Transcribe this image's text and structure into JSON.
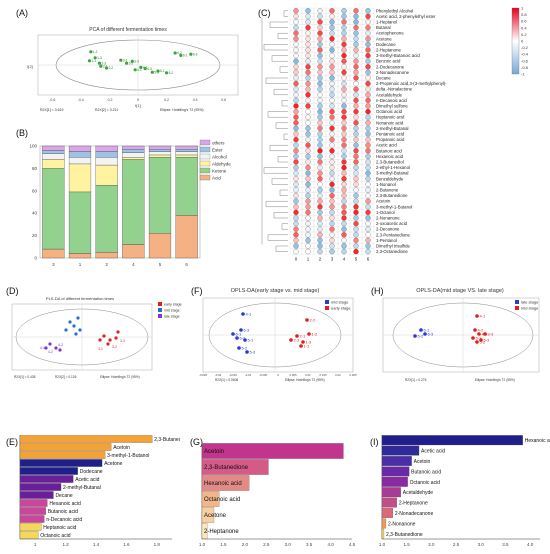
{
  "panels": {
    "A": {
      "label": "(A)",
      "title": "PCA of different fermentation times",
      "xlabel": "t[1]",
      "ylabel": "t[2]",
      "footer_left": "R2X[1] = 0.619",
      "footer_mid": "R2X[2] = 0.211",
      "footer_right": "Ellipse: Hotelling's T2 (95%)",
      "xticks": [
        "-0.6",
        "-0.4",
        "-0.2",
        "0",
        "0.2",
        "0.4",
        "0.6"
      ],
      "point_labels": [
        "1-2",
        "1-3",
        "1-1",
        "2-1",
        "2-2",
        "2-3",
        "3-1",
        "3-2",
        "3-3",
        "4-1",
        "4-2",
        "4-3",
        "5-1",
        "5-2",
        "5-3",
        "6-1",
        "6-2",
        "6-3"
      ]
    },
    "B": {
      "label": "(B)",
      "legend": [
        "others",
        "Ester",
        "Alcohol",
        "Aldehyde",
        "Ketone",
        "Acid"
      ],
      "yticks": [
        "0",
        "20",
        "40",
        "60",
        "80",
        "100"
      ],
      "xcats": [
        "3",
        "1",
        "2",
        "4",
        "5",
        "6"
      ]
    },
    "C": {
      "label": "(C)",
      "compounds": [
        "Phenylethyl Alcohol",
        "Acetic acid, 2-phenylethyl ester",
        "1-Heptanol",
        "Butanal",
        "Acetophenone",
        "Acetone",
        "Dodecane",
        "2-Heptanone",
        "3-methyl-Butanoic acid",
        "Benzoic acid",
        "2-Dodecanone",
        "2-Nonadecanone",
        "Decane",
        "2-Propenoic acid,3-(3-methylphenyl)-",
        "delta.-Nonalactone",
        "Acetaldehyde",
        "n-Decanoic acid",
        "Dimethyl sulfone",
        "Octanoic acid",
        "Heptanoic acid",
        "Nonanoic acid",
        "2-methyl-Butanal",
        "Pentanoic acid",
        "Propanoic acid",
        "Acetic acid",
        "Butanoic acid",
        "Hexanoic acid",
        "2,3-Butanediol",
        "2-ethyl-1-Hexanol",
        "3-methyl-Butanal",
        "Benzaldehyde",
        "1-Nonanol",
        "2-Butanone",
        "2,3-Butanedione",
        "Acetoin",
        "3-methyl-1-Butanol",
        "1-Octanol",
        "2-Nonanone",
        "2-oxoacetic acid",
        "2-Decanone",
        "2,3-Pentanedione",
        "1-Pentanol",
        "Dimethyl trisulfide",
        "2,3-Octanedione"
      ],
      "columns": [
        "0",
        "1",
        "2",
        "3",
        "4",
        "5",
        "6"
      ],
      "scale_ticks": [
        "1",
        "0.8",
        "0.6",
        "0.4",
        "0.2",
        "0",
        "-0.2",
        "-0.4",
        "-0.6",
        "-0.8",
        "-1"
      ]
    },
    "D": {
      "label": "(D)",
      "title": "PLS-DA of different fermentation times",
      "legend": [
        "early stage",
        "mid stage",
        "late stage"
      ],
      "footer_left": "R2X[1] = 0.438",
      "footer_mid": "R2X[2] = 0.126",
      "footer_right": "Ellipse: Hotelling's T2 (95%)",
      "xlabel": "t[1]",
      "ylabel": "t[2]",
      "point_labels": [
        "4-1",
        "4-2",
        "4-3",
        "3-1",
        "3-2",
        "3-3"
      ]
    },
    "F": {
      "label": "(F)",
      "title": "OPLS-DA(early stage vs. mid stage)",
      "legend": [
        "mid stage",
        "early stage"
      ],
      "footer_left": "R2X[1] = 0.0608",
      "footer_right": "Ellipse: Hotelling's T2 (95%)",
      "xlabel": "t[1]",
      "ylabel": "to[1]",
      "xticks": [
        "-0.025",
        "-0.02",
        "-0.015",
        "-0.01",
        "-0.005",
        "0",
        "0.005",
        "0.01",
        "0.015",
        "0.02",
        "0.025"
      ],
      "point_labels": [
        "4-1",
        "6-1",
        "6-2",
        "6-3",
        "5-1",
        "5-2",
        "5-3",
        "2-2",
        "2-1",
        "2-3",
        "1-1",
        "1-2",
        "1-3"
      ]
    },
    "H": {
      "label": "(H)",
      "title": "OPLS-DA(mid stage VS. late stage)",
      "legend": [
        "late stage",
        "mid stage"
      ],
      "footer_left": "R2X[1] = 0.276",
      "footer_right": "Ellipse: Hotelling's T2 (95%)",
      "xlabel": "t[1]",
      "ylabel": "to[1]",
      "point_labels": [
        "4-1",
        "6-1",
        "6-2",
        "6-3",
        "4-2",
        "4-3",
        "5-1",
        "5-2",
        "5-3",
        "3-3"
      ]
    },
    "E": {
      "label": "(E)"
    },
    "G": {
      "label": "(G)"
    },
    "I": {
      "label": "(I)"
    }
  },
  "chart_data": [
    {
      "panel": "A",
      "type": "scatter",
      "title": "PCA of different fermentation times",
      "xlabel": "t[1]",
      "ylabel": "t[2]",
      "xlim": [
        -0.7,
        0.7
      ],
      "ylim": [
        -0.5,
        0.5
      ],
      "points": [
        {
          "label": "1-2",
          "x": -0.33,
          "y": 0.22
        },
        {
          "label": "1-3",
          "x": -0.3,
          "y": 0.12
        },
        {
          "label": "1-1",
          "x": -0.34,
          "y": 0.07
        },
        {
          "label": "2-1",
          "x": -0.26,
          "y": -0.02
        },
        {
          "label": "2-2",
          "x": -0.22,
          "y": -0.05
        },
        {
          "label": "2-3",
          "x": -0.27,
          "y": 0.03
        },
        {
          "label": "3-1",
          "x": -0.12,
          "y": 0.08
        },
        {
          "label": "3-2",
          "x": -0.08,
          "y": 0.03
        },
        {
          "label": "3-3",
          "x": -0.04,
          "y": 0.06
        },
        {
          "label": "4-1",
          "x": -0.02,
          "y": -0.08
        },
        {
          "label": "4-2",
          "x": 0.02,
          "y": -0.04
        },
        {
          "label": "4-3",
          "x": 0.05,
          "y": -0.06
        },
        {
          "label": "5-1",
          "x": 0.14,
          "y": -0.1
        },
        {
          "label": "5-2",
          "x": 0.2,
          "y": -0.13
        },
        {
          "label": "5-3",
          "x": 0.1,
          "y": -0.12
        },
        {
          "label": "6-1",
          "x": 0.3,
          "y": 0.16
        },
        {
          "label": "6-2",
          "x": 0.26,
          "y": 0.2
        },
        {
          "label": "6-3",
          "x": 0.37,
          "y": 0.18
        }
      ]
    },
    {
      "panel": "B",
      "type": "bar",
      "stacked": true,
      "categories": [
        "3",
        "1",
        "2",
        "4",
        "5",
        "6"
      ],
      "ylim": [
        0,
        100
      ],
      "series": [
        {
          "name": "Acid",
          "color": "#f4b183",
          "values": [
            8,
            4,
            5,
            12,
            22,
            38
          ]
        },
        {
          "name": "Ketone",
          "color": "#92d18e",
          "values": [
            72,
            55,
            60,
            76,
            68,
            52
          ]
        },
        {
          "name": "Aldehyde",
          "color": "#fff2a0",
          "values": [
            8,
            25,
            18,
            2,
            2,
            2
          ]
        },
        {
          "name": "Alcohol",
          "color": "#f3f3f3",
          "values": [
            5,
            6,
            7,
            4,
            3,
            3
          ]
        },
        {
          "name": "Ester",
          "color": "#9dc3e6",
          "values": [
            3,
            5,
            5,
            3,
            2,
            2
          ]
        },
        {
          "name": "others",
          "color": "#d9a6e6",
          "values": [
            4,
            5,
            5,
            3,
            3,
            3
          ]
        }
      ]
    },
    {
      "panel": "E",
      "type": "bar",
      "orientation": "horizontal",
      "xticks": [
        "1",
        "1.2",
        "1.4",
        "1.6",
        "1.8"
      ],
      "xlim": [
        0.9,
        1.9
      ],
      "categories": [
        "2,3-Butanedione",
        "Acetoin",
        "3-methyl-1-Butanol",
        "Acetone",
        "Dodecane",
        "Acetic acid",
        "2-methyl-Butanal",
        "Decane",
        "Hexanoic acid",
        "Butanoic acid",
        "n-Decanoic acid",
        "Heptanoic acid",
        "Octanoic acid"
      ],
      "values": [
        1.77,
        1.5,
        1.46,
        1.44,
        1.28,
        1.25,
        1.17,
        1.12,
        1.08,
        1.07,
        1.06,
        1.04,
        1.02
      ],
      "colors": [
        "#f4a236",
        "#f4a236",
        "#f4a236",
        "#1f1f8c",
        "#1f1f8c",
        "#6a1f9a",
        "#6a1f9a",
        "#6a1f9a",
        "#c8479b",
        "#c8479b",
        "#c8479b",
        "#f5d75a",
        "#f5d75a"
      ]
    },
    {
      "panel": "G",
      "type": "bar",
      "orientation": "horizontal",
      "xticks": [
        "1.0",
        "1.5",
        "2.0",
        "2.5",
        "3.0",
        "3.5",
        "4.0",
        "4.5"
      ],
      "xlim": [
        1.0,
        4.5
      ],
      "categories": [
        "Acetoin",
        "2,3-Butanedione",
        "Hexanoic acid",
        "Octanoic acid",
        "Acetone",
        "2-Heptanone"
      ],
      "values": [
        4.3,
        2.55,
        2.1,
        1.4,
        1.28,
        1.12
      ],
      "colors": [
        "#c1358c",
        "#d45a88",
        "#e38a86",
        "#f2b68a",
        "#f8cfa0",
        "#fbe6b8"
      ]
    },
    {
      "panel": "I",
      "type": "bar",
      "orientation": "horizontal",
      "xticks": [
        "1.0",
        "1.5",
        "2.0",
        "2.5",
        "3.0",
        "3.5",
        "4.0"
      ],
      "xlim": [
        1.0,
        4.2
      ],
      "categories": [
        "Hexanoic acid",
        "Acetic acid",
        "Acetoin",
        "Butanoic acid",
        "Octanoic acid",
        "Acetaldehyde",
        "2-Heptanone",
        "2-Nonadecanone",
        "2-Nonanone",
        "2,3-Butanedione"
      ],
      "values": [
        3.85,
        1.75,
        1.6,
        1.55,
        1.52,
        1.38,
        1.3,
        1.22,
        1.08,
        1.04
      ],
      "colors": [
        "#1f1f8c",
        "#2e2a9a",
        "#4a2ea5",
        "#6a2aa8",
        "#8a2aa0",
        "#a83b94",
        "#c04f88",
        "#d96a7a",
        "#ee9a5a",
        "#f5d75a"
      ]
    }
  ]
}
